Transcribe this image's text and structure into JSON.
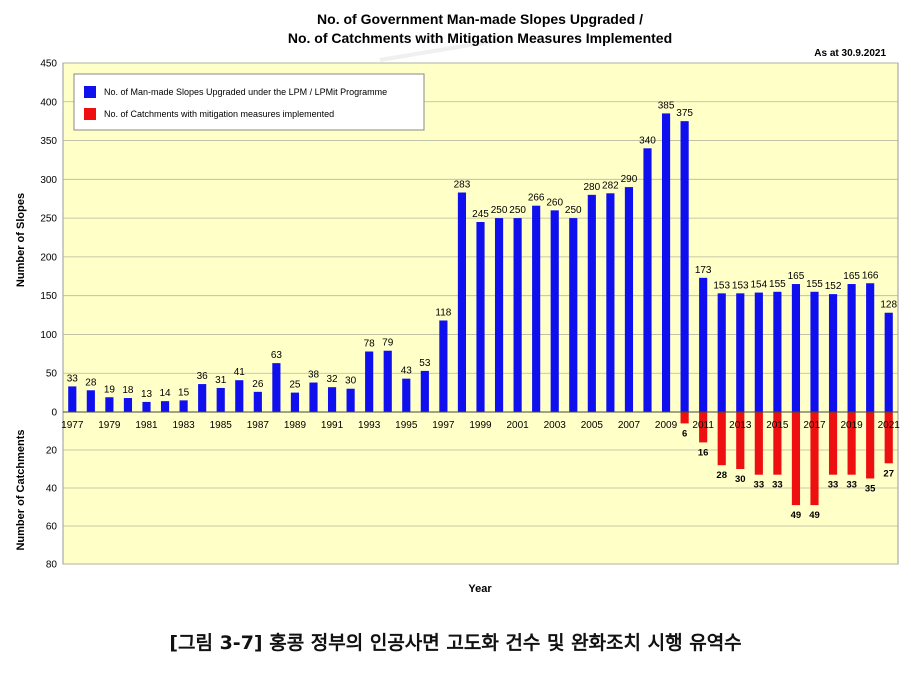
{
  "chart_data": {
    "type": "bar",
    "title_line1": "No. of Government Man-made Slopes Upgraded /",
    "title_line2": "No. of Catchments with Mitigation Measures Implemented",
    "as_at": "As at 30.9.2021",
    "xlabel": "Year",
    "ylabel_top": "Number of Slopes",
    "ylabel_bottom": "Number of Catchments",
    "ylim_top": [
      0,
      450
    ],
    "ylim_bottom": [
      0,
      80
    ],
    "yticks_top": [
      "0",
      "50",
      "100",
      "150",
      "200",
      "250",
      "300",
      "350",
      "400",
      "450"
    ],
    "yticks_bottom": [
      "20",
      "40",
      "60",
      "80"
    ],
    "categories": [
      "1977",
      "1978",
      "1979",
      "1980",
      "1981",
      "1982",
      "1983",
      "1984",
      "1985",
      "1986",
      "1987",
      "1988",
      "1989",
      "1990",
      "1991",
      "1992",
      "1993",
      "1994",
      "1995",
      "1996",
      "1997",
      "1998",
      "1999",
      "2000",
      "2001",
      "2002",
      "2003",
      "2004",
      "2005",
      "2006",
      "2007",
      "2008",
      "2009",
      "2010",
      "2011",
      "2012",
      "2013",
      "2014",
      "2015",
      "2016",
      "2017",
      "2018",
      "2019",
      "2020",
      "2021"
    ],
    "xtick_labels": [
      "1977",
      "1979",
      "1981",
      "1983",
      "1985",
      "1987",
      "1989",
      "1991",
      "1993",
      "1995",
      "1997",
      "1999",
      "2001",
      "2003",
      "2005",
      "2007",
      "2009",
      "2011",
      "2013",
      "2015",
      "2017",
      "2019",
      "2021"
    ],
    "series": [
      {
        "name": "No. of Man-made Slopes Upgraded under the LPM / LPMit Programme",
        "color": "#1010ee",
        "values": [
          33,
          28,
          19,
          18,
          13,
          14,
          15,
          36,
          31,
          41,
          26,
          63,
          25,
          38,
          32,
          30,
          78,
          79,
          43,
          53,
          118,
          283,
          245,
          250,
          250,
          266,
          260,
          250,
          280,
          282,
          290,
          340,
          385,
          375,
          173,
          153,
          153,
          154,
          155,
          165,
          155,
          152,
          165,
          166,
          128
        ]
      },
      {
        "name": "No. of Catchments with mitigation measures implemented",
        "color": "#ee1010",
        "values": [
          null,
          null,
          null,
          null,
          null,
          null,
          null,
          null,
          null,
          null,
          null,
          null,
          null,
          null,
          null,
          null,
          null,
          null,
          null,
          null,
          null,
          null,
          null,
          null,
          null,
          null,
          null,
          null,
          null,
          null,
          null,
          null,
          null,
          6,
          16,
          28,
          30,
          33,
          33,
          49,
          49,
          33,
          33,
          35,
          27
        ]
      }
    ],
    "background_color": "#ffffc8"
  },
  "caption": "[그림 3-7] 홍콩 정부의 인공사면 고도화 건수 및 완화조치 시행 유역수"
}
